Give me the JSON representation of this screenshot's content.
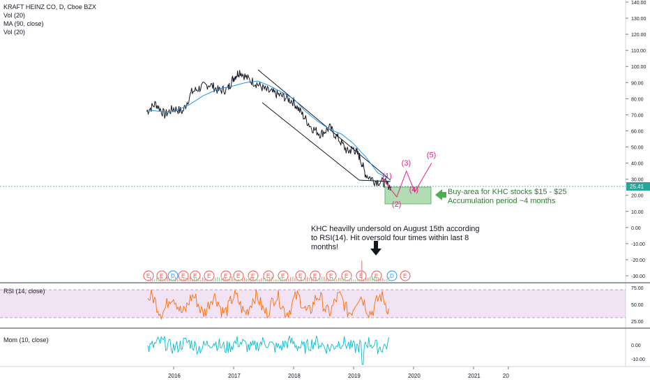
{
  "header": {
    "title": "KRAFT HEINZ CO, D, Cboe BZX",
    "indicators": [
      "Vol (20)",
      "MA (90, close)",
      "Vol (20)"
    ]
  },
  "price_axis": {
    "ticks": [
      "140.00",
      "130.00",
      "120.00",
      "110.00",
      "100.00",
      "90.00",
      "80.00",
      "70.00",
      "60.00",
      "50.00",
      "40.00",
      "30.00",
      "20.00",
      "10.00",
      "0.00",
      "-10.00",
      "-20.00",
      "-30.00"
    ],
    "current_price": "25.41"
  },
  "rsi_panel": {
    "label": "RSI (14, close)",
    "ticks": [
      "75.00",
      "50.00",
      "25.00"
    ]
  },
  "mom_panel": {
    "label": "Mom (10, close)",
    "ticks": [
      "0.00",
      "-10.00"
    ]
  },
  "time_axis": {
    "ticks": [
      "2016",
      "2017",
      "2018",
      "2019",
      "2020",
      "2021",
      "20"
    ]
  },
  "annotations": {
    "buy_area_1": "Buy-area for KHC stocks $15 - $25",
    "buy_area_2": "Accumulation period ~4 months",
    "rsi_note_1": "KHC heavilly undersold on August 15th according",
    "rsi_note_2": "to RSI(14). Hit oversold four times within last 8",
    "rsi_note_3": "months!",
    "wave_1": "(1)",
    "wave_2": "(2)",
    "wave_3": "(3)",
    "wave_4": "(4)",
    "wave_5": "(5)"
  },
  "events": [
    "E",
    "E",
    "D",
    "E",
    "E",
    "E",
    "E",
    "E",
    "E",
    "E",
    "E",
    "E",
    "E",
    "E",
    "E",
    "E",
    "E",
    "D",
    "E",
    "E"
  ],
  "colors": {
    "price": "#131722",
    "ma": "#2196f3",
    "rsi": "#ff6d00",
    "mom": "#00bcd4",
    "wave": "#e91e8c",
    "buy_box": "#4caf50",
    "current": "#26a69a"
  },
  "chart_data": {
    "type": "line",
    "x_ticks": [
      "2016",
      "2017",
      "2018",
      "2019",
      "2020",
      "2021",
      "20"
    ],
    "price": {
      "x": [
        2015.55,
        2015.7,
        2015.85,
        2016.0,
        2016.15,
        2016.3,
        2016.45,
        2016.6,
        2016.75,
        2016.9,
        2017.0,
        2017.1,
        2017.25,
        2017.4,
        2017.55,
        2017.7,
        2017.85,
        2018.0,
        2018.15,
        2018.3,
        2018.45,
        2018.6,
        2018.75,
        2018.9,
        2019.0,
        2019.1,
        2019.2,
        2019.35,
        2019.5,
        2019.62
      ],
      "y": [
        72,
        77,
        70,
        74,
        72,
        84,
        87,
        89,
        85,
        86,
        93,
        97,
        92,
        89,
        85,
        83,
        81,
        78,
        70,
        62,
        58,
        62,
        55,
        47,
        49,
        44,
        33,
        29,
        28,
        25.4
      ]
    },
    "ma90": {
      "x": [
        2015.55,
        2015.8,
        2016.0,
        2016.25,
        2016.5,
        2016.75,
        2017.0,
        2017.2,
        2017.4,
        2017.6,
        2017.8,
        2018.0,
        2018.2,
        2018.4,
        2018.6,
        2018.8,
        2019.0,
        2019.2,
        2019.4,
        2019.6
      ],
      "y": [
        73,
        72,
        72,
        76,
        82,
        86,
        88,
        90,
        91,
        88,
        84,
        80,
        72,
        66,
        61,
        58,
        52,
        44,
        34,
        30
      ]
    },
    "rsi": {
      "ylim": [
        20,
        80
      ],
      "overbought": 70,
      "oversold": 30,
      "range_from": "2015.6",
      "range_to": "2019.62"
    },
    "mom": {
      "ylim": [
        -15,
        10
      ]
    },
    "buy_area": {
      "low": 15,
      "high": 25
    },
    "elliott_waves": {
      "labels": [
        "(1)",
        "(2)",
        "(3)",
        "(4)",
        "(5)"
      ],
      "x": [
        2019.55,
        2019.72,
        2019.88,
        2020.02,
        2020.3
      ],
      "y": [
        27,
        19,
        35,
        22,
        40
      ]
    }
  }
}
